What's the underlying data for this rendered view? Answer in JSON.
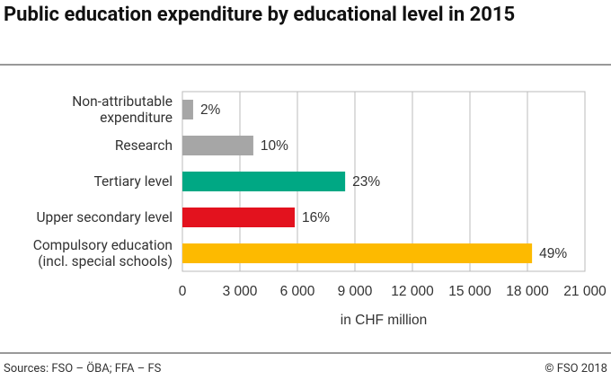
{
  "chart_data": {
    "type": "bar",
    "orientation": "horizontal",
    "title": "Public education expenditure by educational level in 2015",
    "categories": [
      "Non-attributable\nexpenditure",
      "Research",
      "Tertiary level",
      "Upper secondary level",
      "Compulsory education\n(incl. special schools)"
    ],
    "values": [
      560,
      3700,
      8490,
      5860,
      18240
    ],
    "share_labels": [
      "2%",
      "10%",
      "23%",
      "16%",
      "49%"
    ],
    "colors": [
      "#a6a6a6",
      "#a6a6a6",
      "#00a884",
      "#e3121e",
      "#fdba00"
    ],
    "xlim": [
      0,
      21000
    ],
    "xticks": [
      0,
      {
        "value": 3000,
        "label": "3 000"
      },
      {
        "value": 6000,
        "label": "6 000"
      },
      {
        "value": 9000,
        "label": "9 000"
      },
      {
        "value": 12000,
        "label": "12 000"
      },
      {
        "value": 15000,
        "label": "15 000"
      },
      {
        "value": 18000,
        "label": "18 000"
      },
      {
        "value": 21000,
        "label": "21 000"
      }
    ],
    "xlabel": "in CHF million",
    "grid": true,
    "source": "Sources: FSO – ÖBA; FFA – FS",
    "copyright": "© FSO 2018"
  }
}
